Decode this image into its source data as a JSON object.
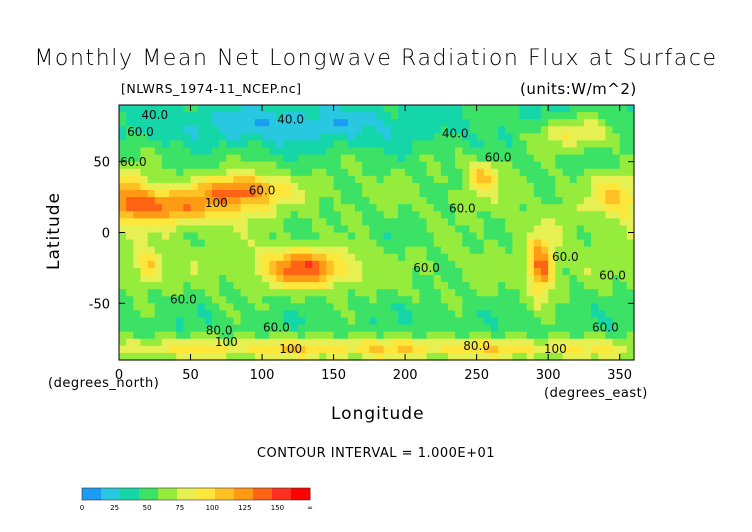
{
  "chart_data": {
    "type": "heatmap",
    "title": "Monthly Mean Net Longwave Radiation Flux at Surface",
    "file_label": "[NLWRS_1974-11_NCEP.nc]",
    "units_label": "(units:W/m^2)",
    "xlabel": "Longitude",
    "ylabel": "Latitude",
    "x_unit_label": "(degrees_east)",
    "y_unit_label": "(degrees_north)",
    "xlim": [
      0,
      360
    ],
    "ylim": [
      -90,
      90
    ],
    "x_ticks": [
      0,
      50,
      100,
      150,
      200,
      250,
      300,
      350
    ],
    "y_ticks": [
      -50,
      0,
      50
    ],
    "contour_interval_label": "CONTOUR INTERVAL = 1.000E+01",
    "contour_labels": [
      {
        "text": "40.0",
        "lon": 25,
        "lat": 80
      },
      {
        "text": "40.0",
        "lon": 120,
        "lat": 77
      },
      {
        "text": "40.0",
        "lon": 235,
        "lat": 67
      },
      {
        "text": "60.0",
        "lon": 15,
        "lat": 68
      },
      {
        "text": "60.0",
        "lon": 10,
        "lat": 47
      },
      {
        "text": "60.0",
        "lon": 265,
        "lat": 50
      },
      {
        "text": "60.0",
        "lon": 100,
        "lat": 27
      },
      {
        "text": "60.0",
        "lon": 240,
        "lat": 14
      },
      {
        "text": "60.0",
        "lon": 312,
        "lat": -20
      },
      {
        "text": "60.0",
        "lon": 345,
        "lat": -33
      },
      {
        "text": "60.0",
        "lon": 45,
        "lat": -50
      },
      {
        "text": "60.0",
        "lon": 215,
        "lat": -28
      },
      {
        "text": "60.0",
        "lon": 340,
        "lat": -70
      },
      {
        "text": "60.0",
        "lon": 110,
        "lat": -70
      },
      {
        "text": "100",
        "lon": 68,
        "lat": 18
      },
      {
        "text": "100",
        "lon": 75,
        "lat": -80
      },
      {
        "text": "100",
        "lon": 120,
        "lat": -85
      },
      {
        "text": "100",
        "lon": 305,
        "lat": -85
      },
      {
        "text": "80.0",
        "lon": 70,
        "lat": -72
      },
      {
        "text": "80.0",
        "lon": 250,
        "lat": -83
      }
    ],
    "colorbar": {
      "levels": [
        "0",
        "25",
        "50",
        "75",
        "100",
        "125",
        "150",
        "∞"
      ],
      "colors": [
        "#1a9cf2",
        "#28c8e0",
        "#14d6a8",
        "#3ce266",
        "#96ec3c",
        "#e6f052",
        "#ffe63a",
        "#ffc024",
        "#ff9a14",
        "#ff6414",
        "#ff2e1e",
        "#ff0000"
      ]
    }
  }
}
